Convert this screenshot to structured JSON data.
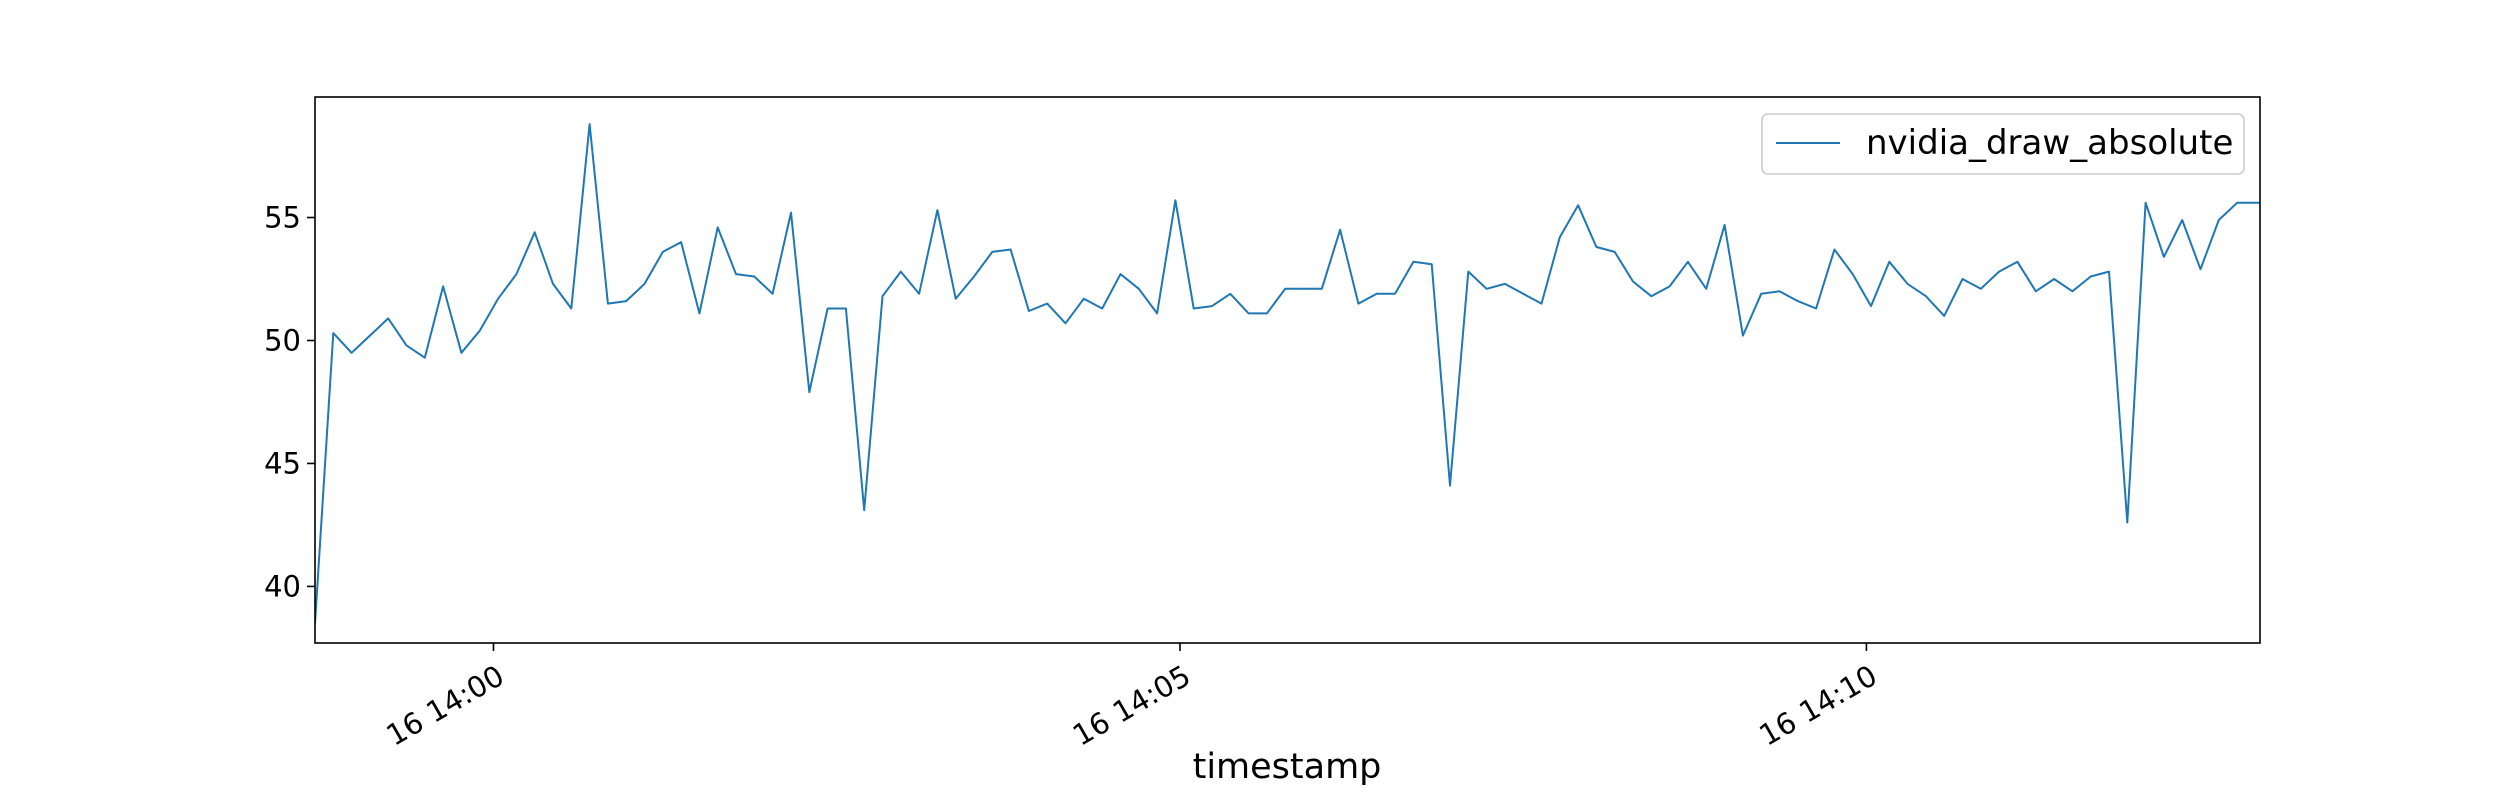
{
  "chart_data": {
    "type": "line",
    "title": "",
    "xlabel": "timestamp",
    "ylabel": "",
    "x_start": "16 13:58:42",
    "x_end": "16 14:12:52",
    "ylim": [
      37.7,
      59.9
    ],
    "xticks": [
      {
        "time": "16 14:00",
        "label": "16 14:00"
      },
      {
        "time": "16 14:05",
        "label": "16 14:05"
      },
      {
        "time": "16 14:10",
        "label": "16 14:10"
      }
    ],
    "yticks": [
      40,
      45,
      50,
      55
    ],
    "grid": false,
    "legend": {
      "position": "top-right",
      "entries": [
        "nvidia_draw_absolute"
      ]
    },
    "series": [
      {
        "name": "nvidia_draw_absolute",
        "color": "#1f77b4",
        "x": [
          "16 13:58:42",
          "16 13:58:50",
          "16 13:58:58",
          "16 13:59:06",
          "16 13:59:14",
          "16 13:59:22",
          "16 13:59:30",
          "16 13:59:38",
          "16 13:59:46",
          "16 13:59:54",
          "16 14:00:02",
          "16 14:00:10",
          "16 14:00:18",
          "16 14:00:26",
          "16 14:00:34",
          "16 14:00:42",
          "16 14:00:50",
          "16 14:00:58",
          "16 14:01:06",
          "16 14:01:14",
          "16 14:01:22",
          "16 14:01:30",
          "16 14:01:38",
          "16 14:01:46",
          "16 14:01:54",
          "16 14:02:02",
          "16 14:02:10",
          "16 14:02:18",
          "16 14:02:26",
          "16 14:02:34",
          "16 14:02:42",
          "16 14:02:50",
          "16 14:02:58",
          "16 14:03:06",
          "16 14:03:14",
          "16 14:03:22",
          "16 14:03:30",
          "16 14:03:38",
          "16 14:03:46",
          "16 14:03:54",
          "16 14:04:02",
          "16 14:04:10",
          "16 14:04:18",
          "16 14:04:26",
          "16 14:04:34",
          "16 14:04:42",
          "16 14:04:50",
          "16 14:04:58",
          "16 14:05:06",
          "16 14:05:14",
          "16 14:05:22",
          "16 14:05:30",
          "16 14:05:38",
          "16 14:05:46",
          "16 14:05:54",
          "16 14:06:02",
          "16 14:06:10",
          "16 14:06:18",
          "16 14:06:26",
          "16 14:06:34",
          "16 14:06:42",
          "16 14:06:50",
          "16 14:06:58",
          "16 14:07:06",
          "16 14:07:14",
          "16 14:07:22",
          "16 14:07:30",
          "16 14:07:38",
          "16 14:07:46",
          "16 14:07:54",
          "16 14:08:02",
          "16 14:08:10",
          "16 14:08:18",
          "16 14:08:26",
          "16 14:08:34",
          "16 14:08:42",
          "16 14:08:50",
          "16 14:08:58",
          "16 14:09:06",
          "16 14:09:14",
          "16 14:09:22",
          "16 14:09:30",
          "16 14:09:38",
          "16 14:09:46",
          "16 14:09:54",
          "16 14:10:02",
          "16 14:10:10",
          "16 14:10:18",
          "16 14:10:26",
          "16 14:10:34",
          "16 14:10:42",
          "16 14:10:50",
          "16 14:10:58",
          "16 14:11:06",
          "16 14:11:14",
          "16 14:11:22",
          "16 14:11:30",
          "16 14:11:38",
          "16 14:11:46",
          "16 14:11:54",
          "16 14:12:02",
          "16 14:12:10",
          "16 14:12:18",
          "16 14:12:26",
          "16 14:12:34",
          "16 14:12:42",
          "16 14:12:52"
        ],
        "y": [
          38.5,
          50.3,
          49.5,
          50.2,
          50.9,
          49.8,
          49.3,
          52.2,
          49.5,
          50.4,
          51.7,
          52.7,
          54.4,
          52.3,
          51.3,
          58.8,
          51.5,
          51.6,
          52.3,
          53.6,
          54.0,
          51.1,
          54.6,
          52.7,
          52.6,
          51.9,
          55.2,
          47.9,
          51.3,
          51.3,
          43.1,
          51.8,
          52.8,
          51.9,
          55.3,
          51.7,
          52.6,
          53.6,
          53.7,
          51.2,
          51.5,
          50.7,
          51.7,
          51.3,
          52.7,
          52.1,
          51.1,
          55.7,
          51.3,
          51.4,
          51.9,
          51.1,
          51.1,
          52.1,
          52.1,
          52.1,
          54.5,
          51.5,
          51.9,
          51.9,
          53.2,
          53.1,
          44.1,
          52.8,
          52.1,
          52.3,
          51.9,
          51.5,
          54.2,
          55.5,
          53.8,
          53.6,
          52.4,
          51.8,
          52.2,
          53.2,
          52.1,
          54.7,
          50.2,
          51.9,
          52.0,
          51.6,
          51.3,
          53.7,
          52.7,
          51.4,
          53.2,
          52.3,
          51.8,
          51.0,
          52.5,
          52.1,
          52.8,
          53.2,
          52.0,
          52.5,
          52.0,
          52.6,
          52.8,
          42.6,
          55.6,
          53.4,
          54.9,
          52.9,
          54.9,
          55.6,
          55.6
        ]
      }
    ]
  }
}
